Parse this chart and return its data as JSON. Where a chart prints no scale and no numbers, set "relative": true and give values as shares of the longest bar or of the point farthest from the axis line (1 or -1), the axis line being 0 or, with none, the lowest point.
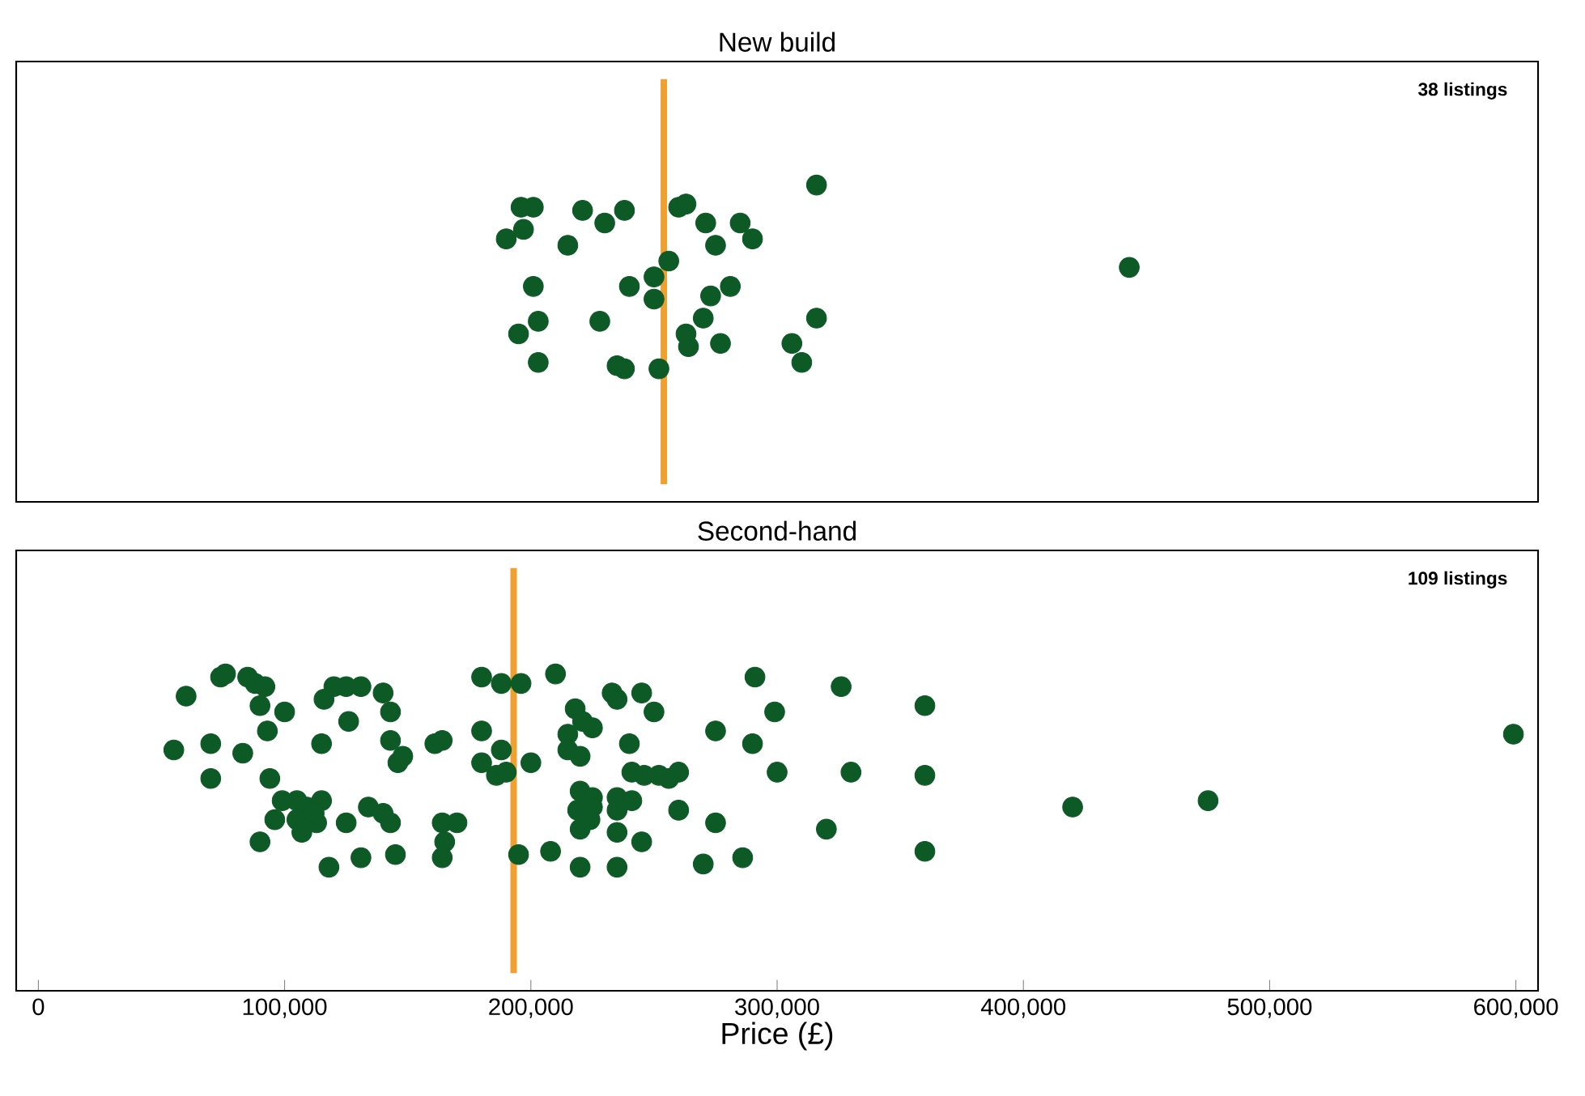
{
  "chart_data": [
    {
      "type": "scatter",
      "title": "New build",
      "marker": "circle",
      "color": "#0d5a26",
      "xlim": [
        -9000,
        609000
      ],
      "relative": true,
      "tick_labels": false,
      "x": [
        196000,
        201000,
        190000,
        197000,
        221000,
        230000,
        238000,
        215000,
        260000,
        263000,
        271000,
        285000,
        290000,
        275000,
        316000,
        256000,
        250000,
        201000,
        240000,
        250000,
        273000,
        281000,
        270000,
        203000,
        195000,
        228000,
        263000,
        264000,
        277000,
        203000,
        235000,
        238000,
        252000,
        306000,
        310000,
        316000,
        443000
      ],
      "values": [
        0.93,
        0.93,
        0.83,
        0.86,
        0.92,
        0.88,
        0.92,
        0.81,
        0.93,
        0.94,
        0.88,
        0.88,
        0.83,
        0.81,
        1,
        0.76,
        0.71,
        0.68,
        0.68,
        0.64,
        0.65,
        0.68,
        0.58,
        0.57,
        0.53,
        0.57,
        0.53,
        0.49,
        0.5,
        0.44,
        0.43,
        0.42,
        0.42,
        0.5,
        0.44,
        0.58,
        0.74
      ],
      "ref_lines": [
        {
          "axis": "x",
          "value": 254000,
          "color": "#f0a030"
        }
      ],
      "annotations": [
        "38 listings"
      ]
    },
    {
      "type": "scatter",
      "title": "Second-hand",
      "xlabel": "Price (£)",
      "marker": "circle",
      "color": "#0d5a26",
      "xlim": [
        -9000,
        609000
      ],
      "relative": true,
      "tick_labels": "x",
      "xticks": [
        0,
        {
          "value": 100000,
          "label": "100,000"
        },
        {
          "value": 200000,
          "label": "200,000"
        },
        {
          "value": 300000,
          "label": "300,000"
        },
        {
          "value": 400000,
          "label": "400,000"
        },
        {
          "value": 500000,
          "label": "500,000"
        },
        {
          "value": 600000,
          "label": "600,000"
        }
      ],
      "x": [
        60000,
        74000,
        76000,
        85000,
        88000,
        92000,
        90000,
        100000,
        93000,
        55000,
        70000,
        83000,
        70000,
        94000,
        99000,
        105000,
        109000,
        115000,
        96000,
        105000,
        107000,
        113000,
        90000,
        125000,
        134000,
        140000,
        143000,
        118000,
        131000,
        145000,
        115000,
        116000,
        120000,
        125000,
        131000,
        140000,
        143000,
        126000,
        143000,
        146000,
        148000,
        180000,
        188000,
        196000,
        210000,
        233000,
        235000,
        245000,
        250000,
        218000,
        221000,
        225000,
        215000,
        215000,
        220000,
        161000,
        164000,
        180000,
        188000,
        180000,
        186000,
        190000,
        200000,
        240000,
        241000,
        246000,
        252000,
        256000,
        260000,
        220000,
        225000,
        235000,
        241000,
        219000,
        224000,
        220000,
        235000,
        235000,
        245000,
        260000,
        164000,
        170000,
        165000,
        164000,
        195000,
        208000,
        220000,
        235000,
        291000,
        326000,
        299000,
        360000,
        275000,
        290000,
        300000,
        330000,
        360000,
        275000,
        320000,
        360000,
        270000,
        286000,
        420000,
        475000,
        599000,
        112000,
        225000
      ],
      "values": [
        0.93,
        0.99,
        1,
        0.99,
        0.97,
        0.96,
        0.9,
        0.88,
        0.82,
        0.76,
        0.78,
        0.75,
        0.67,
        0.67,
        0.6,
        0.6,
        0.58,
        0.6,
        0.54,
        0.54,
        0.5,
        0.53,
        0.47,
        0.53,
        0.58,
        0.56,
        0.53,
        0.39,
        0.42,
        0.43,
        0.78,
        0.92,
        0.96,
        0.96,
        0.96,
        0.94,
        0.88,
        0.85,
        0.79,
        0.72,
        0.74,
        0.99,
        0.97,
        0.97,
        1,
        0.94,
        0.92,
        0.94,
        0.88,
        0.89,
        0.85,
        0.83,
        0.81,
        0.76,
        0.74,
        0.78,
        0.79,
        0.82,
        0.76,
        0.72,
        0.68,
        0.69,
        0.72,
        0.78,
        0.69,
        0.68,
        0.68,
        0.67,
        0.69,
        0.63,
        0.61,
        0.61,
        0.6,
        0.57,
        0.54,
        0.51,
        0.57,
        0.5,
        0.47,
        0.57,
        0.53,
        0.53,
        0.47,
        0.42,
        0.43,
        0.44,
        0.39,
        0.39,
        0.99,
        0.96,
        0.88,
        0.9,
        0.82,
        0.78,
        0.69,
        0.69,
        0.68,
        0.53,
        0.51,
        0.44,
        0.4,
        0.42,
        0.58,
        0.6,
        0.81,
        0.56,
        0.58
      ],
      "ref_lines": [
        {
          "axis": "x",
          "value": 193000,
          "color": "#f0a030"
        }
      ],
      "annotations": [
        "109 listings"
      ]
    }
  ]
}
